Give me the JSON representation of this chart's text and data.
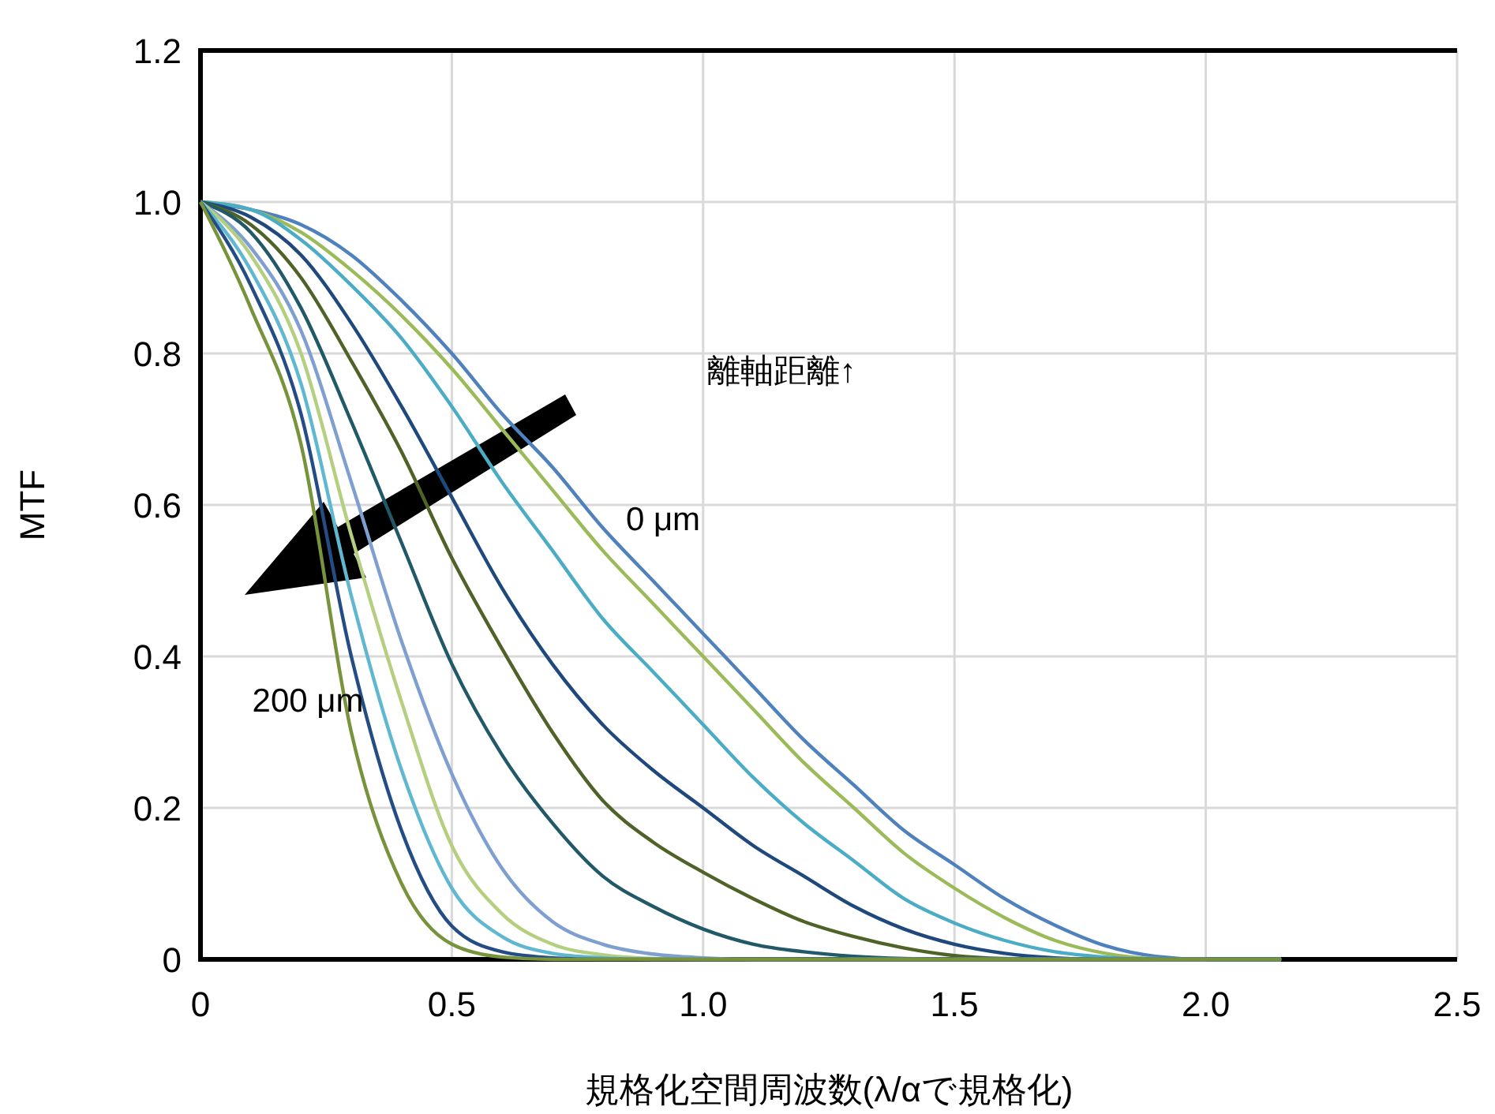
{
  "chart_data": {
    "type": "line",
    "xlabel": "規格化空間周波数(λ/αで規格化)",
    "ylabel": "MTF",
    "x": [
      0,
      0.1,
      0.2,
      0.3,
      0.4,
      0.5,
      0.6,
      0.7,
      0.8,
      0.9,
      1.0,
      1.1,
      1.2,
      1.3,
      1.4,
      1.5,
      1.6,
      1.7,
      1.8,
      1.9,
      2.0,
      2.1,
      2.15
    ],
    "series": [
      {
        "color": "#4f81bd",
        "values": [
          1,
          0.99,
          0.97,
          0.93,
          0.87,
          0.8,
          0.72,
          0.65,
          0.57,
          0.5,
          0.43,
          0.36,
          0.29,
          0.23,
          0.17,
          0.125,
          0.08,
          0.045,
          0.018,
          0.004,
          0,
          0,
          0
        ]
      },
      {
        "color": "#9bbb59",
        "values": [
          1,
          0.99,
          0.96,
          0.91,
          0.85,
          0.78,
          0.7,
          0.62,
          0.54,
          0.47,
          0.4,
          0.33,
          0.26,
          0.2,
          0.14,
          0.094,
          0.055,
          0.025,
          0.008,
          0.001,
          0,
          0,
          0
        ]
      },
      {
        "color": "#4bacc6",
        "values": [
          1,
          0.99,
          0.95,
          0.89,
          0.82,
          0.73,
          0.63,
          0.54,
          0.45,
          0.38,
          0.31,
          0.24,
          0.18,
          0.13,
          0.08,
          0.048,
          0.025,
          0.01,
          0.003,
          0,
          0,
          0,
          0
        ]
      },
      {
        "color": "#1f497d",
        "values": [
          1,
          0.98,
          0.93,
          0.84,
          0.73,
          0.61,
          0.49,
          0.39,
          0.31,
          0.25,
          0.2,
          0.15,
          0.11,
          0.07,
          0.04,
          0.02,
          0.008,
          0.002,
          0,
          0,
          0,
          0,
          0
        ]
      },
      {
        "color": "#4f6228",
        "values": [
          1,
          0.97,
          0.9,
          0.79,
          0.67,
          0.53,
          0.41,
          0.3,
          0.21,
          0.155,
          0.115,
          0.08,
          0.05,
          0.03,
          0.015,
          0.005,
          0.001,
          0,
          0,
          0,
          0,
          0,
          0
        ]
      },
      {
        "color": "#215968",
        "values": [
          1,
          0.96,
          0.86,
          0.71,
          0.55,
          0.39,
          0.27,
          0.18,
          0.11,
          0.07,
          0.04,
          0.02,
          0.01,
          0.004,
          0.001,
          0,
          0,
          0,
          0,
          0,
          0,
          0,
          0
        ]
      },
      {
        "color": "#7f9fd0",
        "values": [
          1,
          0.94,
          0.83,
          0.63,
          0.42,
          0.245,
          0.12,
          0.05,
          0.02,
          0.007,
          0.002,
          0,
          0,
          0,
          0,
          0,
          0,
          0,
          0,
          0,
          0,
          0,
          0
        ]
      },
      {
        "color": "#b3cf7f",
        "values": [
          1,
          0.93,
          0.8,
          0.56,
          0.34,
          0.15,
          0.06,
          0.02,
          0.006,
          0.001,
          0,
          0,
          0,
          0,
          0,
          0,
          0,
          0,
          0,
          0,
          0,
          null,
          null
        ]
      },
      {
        "color": "#5fb8d0",
        "values": [
          1,
          0.91,
          0.76,
          0.48,
          0.25,
          0.094,
          0.03,
          0.008,
          0.002,
          0,
          0,
          0,
          0,
          0,
          0,
          0,
          0,
          0,
          0,
          0,
          0,
          0,
          0
        ]
      },
      {
        "color": "#254d85",
        "values": [
          1,
          0.89,
          0.72,
          0.4,
          0.17,
          0.044,
          0.01,
          0.002,
          0,
          0,
          0,
          0,
          0,
          0,
          0,
          0,
          0,
          0,
          0,
          0,
          0,
          0,
          0
        ]
      },
      {
        "color": "#77933c",
        "values": [
          1,
          0.86,
          0.68,
          0.3,
          0.1,
          0.02,
          0.003,
          0,
          0,
          0,
          0,
          0,
          0,
          0,
          0,
          0,
          0,
          0,
          0,
          0,
          0,
          0,
          0
        ]
      }
    ],
    "xlim": [
      0,
      2.5
    ],
    "xticks": [
      0,
      0.5,
      {
        "value": 1,
        "label": "1.0"
      },
      1.5,
      {
        "value": 2,
        "label": "2.0"
      },
      2.5
    ],
    "ylim": [
      0,
      1.2
    ],
    "yticks": [
      0,
      0.2,
      0.4,
      0.6,
      0.8,
      {
        "value": 1,
        "label": "1.0"
      },
      1.2
    ],
    "grid": true,
    "annotations": [
      "離軸距離↑",
      "0 μm",
      "200 μm"
    ]
  }
}
